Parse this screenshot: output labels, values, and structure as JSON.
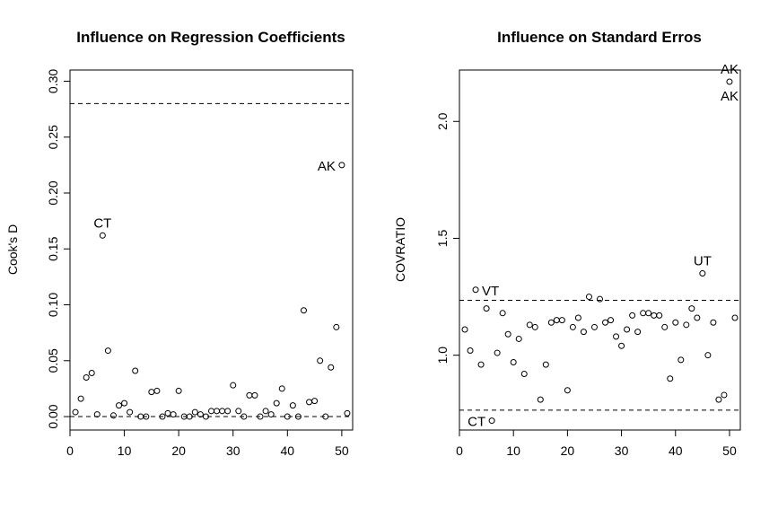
{
  "chart_data": [
    {
      "type": "scatter",
      "title": "Influence on Regression Coefficients",
      "xlabel": "",
      "ylabel": "Cook's D",
      "xlim": [
        0,
        52
      ],
      "ylim": [
        -0.012,
        0.31
      ],
      "xticks": [
        0,
        10,
        20,
        30,
        40,
        50
      ],
      "yticks": [
        0.0,
        0.05,
        0.1,
        0.15,
        0.2,
        0.25,
        0.3
      ],
      "ytick_labels": [
        "0.00",
        "0.05",
        "0.10",
        "0.15",
        "0.20",
        "0.25",
        "0.30"
      ],
      "hlines": [
        0.28,
        0.0
      ],
      "x": [
        1,
        2,
        3,
        4,
        5,
        6,
        7,
        8,
        9,
        10,
        11,
        12,
        13,
        14,
        15,
        16,
        17,
        18,
        19,
        20,
        21,
        22,
        23,
        24,
        25,
        26,
        27,
        28,
        29,
        30,
        31,
        32,
        33,
        34,
        35,
        36,
        37,
        38,
        39,
        40,
        41,
        42,
        43,
        44,
        45,
        46,
        47,
        48,
        49,
        50,
        51
      ],
      "y": [
        0.004,
        0.016,
        0.035,
        0.039,
        0.002,
        0.162,
        0.059,
        0.001,
        0.01,
        0.012,
        0.004,
        0.041,
        0.0,
        0.0,
        0.022,
        0.023,
        0.0,
        0.003,
        0.002,
        0.023,
        0.0,
        0.0,
        0.004,
        0.002,
        0.0,
        0.005,
        0.005,
        0.005,
        0.005,
        0.028,
        0.005,
        0.0,
        0.019,
        0.019,
        0.0,
        0.005,
        0.002,
        0.012,
        0.025,
        0.0,
        0.01,
        0.0,
        0.095,
        0.013,
        0.014,
        0.05,
        0.0,
        0.044,
        0.08,
        0.225,
        0.003
      ],
      "annotations": [
        {
          "text": "CT",
          "x": 6,
          "y": 0.162,
          "pos": "above"
        },
        {
          "text": "AK",
          "x": 50,
          "y": 0.225,
          "pos": "left"
        }
      ]
    },
    {
      "type": "scatter",
      "title": "Influence on Standard Erros",
      "xlabel": "",
      "ylabel": "COVRATIO",
      "xlim": [
        0,
        52
      ],
      "ylim": [
        0.68,
        2.22
      ],
      "xticks": [
        0,
        10,
        20,
        30,
        40,
        50
      ],
      "yticks": [
        1.0,
        1.5,
        2.0
      ],
      "ytick_labels": [
        "1.0",
        "1.5",
        "2.0"
      ],
      "hlines": [
        1.235,
        0.765
      ],
      "x": [
        1,
        2,
        3,
        4,
        5,
        6,
        7,
        8,
        9,
        10,
        11,
        12,
        13,
        14,
        15,
        16,
        17,
        18,
        19,
        20,
        21,
        22,
        23,
        24,
        25,
        26,
        27,
        28,
        29,
        30,
        31,
        32,
        33,
        34,
        35,
        36,
        37,
        38,
        39,
        40,
        41,
        42,
        43,
        44,
        45,
        46,
        47,
        48,
        49,
        50,
        51
      ],
      "y": [
        1.11,
        1.02,
        1.28,
        0.96,
        1.2,
        0.72,
        1.01,
        1.18,
        1.09,
        0.97,
        1.07,
        0.92,
        1.13,
        1.12,
        0.81,
        0.96,
        1.14,
        1.15,
        1.15,
        0.85,
        1.12,
        1.16,
        1.1,
        1.25,
        1.12,
        1.24,
        1.14,
        1.15,
        1.08,
        1.04,
        1.11,
        1.17,
        1.1,
        1.18,
        1.18,
        1.17,
        1.17,
        1.12,
        0.9,
        1.14,
        0.98,
        1.13,
        1.2,
        1.16,
        1.35,
        1.0,
        1.14,
        0.81,
        0.83,
        2.17,
        1.16
      ],
      "annotations": [
        {
          "text": "VT",
          "x": 3,
          "y": 1.28,
          "pos": "right"
        },
        {
          "text": "CT",
          "x": 6,
          "y": 0.72,
          "pos": "left"
        },
        {
          "text": "UT",
          "x": 45,
          "y": 1.35,
          "pos": "above"
        },
        {
          "text": "AK",
          "x": 50,
          "y": 2.17,
          "pos": "above"
        },
        {
          "text": "AK",
          "x": 50,
          "y": 2.17,
          "pos": "below"
        }
      ]
    }
  ]
}
